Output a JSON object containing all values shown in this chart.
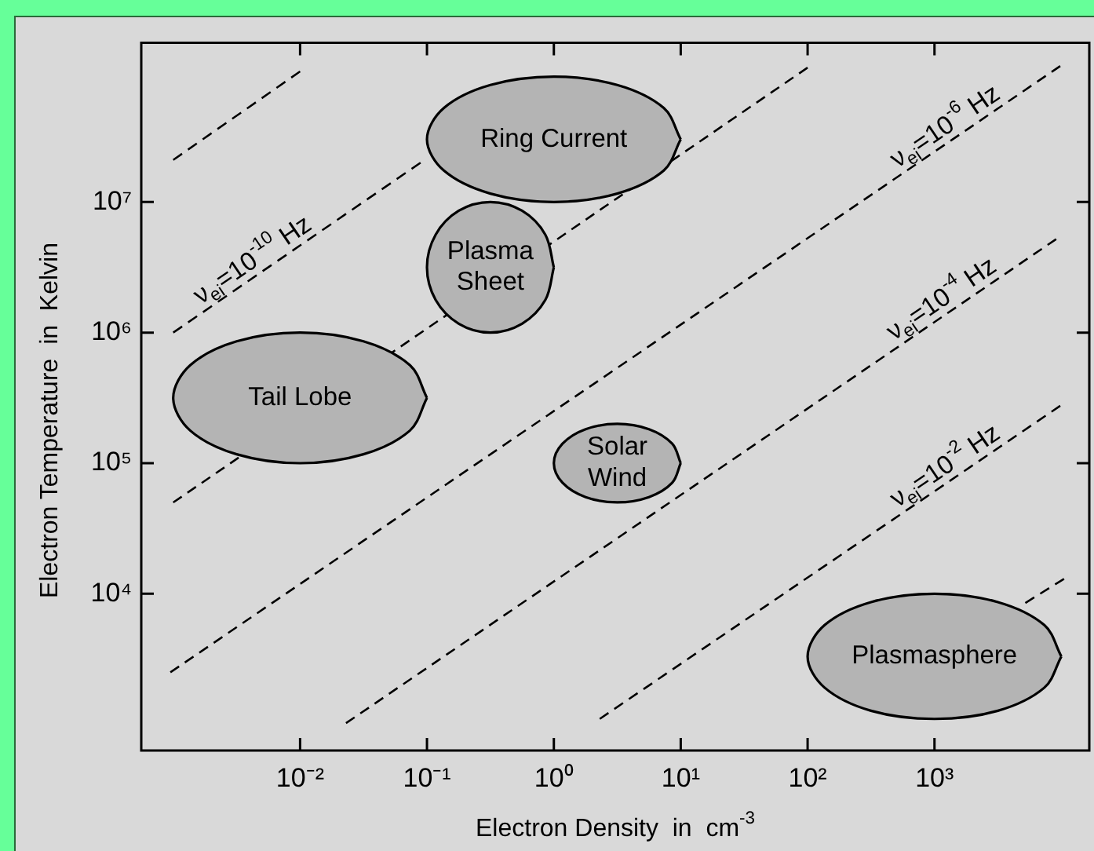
{
  "chart_data": {
    "type": "line",
    "xlabel": "Electron Density  in  cm$^{-3}$",
    "ylabel": "Electron Temperature  in  Kelvin",
    "log": "xy",
    "xlim": [
      0.00056,
      16600
    ],
    "ylim": [
      630,
      166000000
    ],
    "xticks": [
      {
        "value": 0.01,
        "label": "10⁻²"
      },
      {
        "value": 0.1,
        "label": "10⁻¹"
      },
      {
        "value": 1,
        "label": "10⁰"
      },
      {
        "value": 10,
        "label": "10¹"
      },
      {
        "value": 100,
        "label": "10²"
      },
      {
        "value": 1000,
        "label": "10³"
      }
    ],
    "yticks": [
      {
        "value": 10000,
        "label": "10⁴"
      },
      {
        "value": 100000,
        "label": "10⁵"
      },
      {
        "value": 1000000,
        "label": "10⁶"
      },
      {
        "value": 10000000,
        "label": "10⁷"
      }
    ],
    "grid": false,
    "legend": false,
    "line_style": "dashed",
    "marker": "none",
    "series": [
      {
        "color": "#000000",
        "x": [
          0.001,
          0.01
        ],
        "values": [
          21000000,
          100000000
        ]
      },
      {
        "color": "#000000",
        "x": [
          0.001,
          0.089
        ],
        "values": [
          1000000,
          20000000
        ]
      },
      {
        "color": "#000000",
        "x": [
          0.001,
          100
        ],
        "values": [
          50000,
          107000000
        ]
      },
      {
        "color": "#000000",
        "x": [
          0.00095,
          9800
        ],
        "values": [
          2500,
          110000000
        ]
      },
      {
        "color": "#000000",
        "x": [
          0.023,
          9100
        ],
        "values": [
          1020,
          5200000
        ]
      },
      {
        "color": "#000000",
        "x": [
          2.3,
          9800
        ],
        "values": [
          1100,
          275000
        ]
      },
      {
        "color": "#000000",
        "x": [
          5200,
          10500
        ],
        "values": [
          8500,
          13000
        ]
      },
      {
        "type": "area",
        "name": "Tail Lobe",
        "color": "#b4b4b4",
        "x": [
          0.1,
          0.0735,
          0.0316,
          0.01,
          0.00316,
          0.00136,
          0.001,
          0.00136,
          0.00316,
          0.01,
          0.0316,
          0.0735,
          0.1
        ],
        "values": [
          316000,
          562000,
          857000,
          1000000,
          857000,
          562000,
          316000,
          178000,
          117000,
          100000,
          117000,
          178000,
          316000
        ]
      },
      {
        "type": "area",
        "name": "Ring Current",
        "color": "#b4b4b4",
        "x": [
          10,
          7.35,
          3.16,
          1,
          0.316,
          0.136,
          0.1,
          0.136,
          0.316,
          1,
          3.16,
          7.35,
          10
        ],
        "values": [
          30200000,
          52500000,
          78700000,
          91200000,
          78700000,
          52500000,
          30200000,
          17400000,
          11600000,
          10000000,
          11600000,
          17400000,
          30200000
        ]
      },
      {
        "type": "area",
        "name": "Plasma Sheet",
        "color": "#b4b4b4",
        "x": [
          1,
          0.857,
          0.562,
          0.316,
          0.178,
          0.117,
          0.1,
          0.117,
          0.178,
          0.316,
          0.562,
          0.857,
          1
        ],
        "values": [
          3160000,
          5620000,
          8570000,
          10000000,
          8570000,
          5620000,
          3160000,
          1780000,
          1170000,
          1000000,
          1170000,
          1780000,
          3160000
        ]
      },
      {
        "type": "area",
        "name": "Solar Wind",
        "color": "#b4b4b4",
        "x": [
          10,
          8.57,
          5.62,
          3.16,
          1.78,
          1.17,
          1,
          1.17,
          1.78,
          3.16,
          5.62,
          8.57,
          10
        ],
        "values": [
          100000,
          141000,
          182000,
          200000,
          182000,
          141000,
          100000,
          70800,
          55000,
          50100,
          55000,
          70800,
          100000
        ]
      },
      {
        "type": "area",
        "name": "Plasmasphere",
        "color": "#b4b4b4",
        "x": [
          10000,
          7350,
          3160,
          1000,
          316,
          136,
          100,
          136,
          316,
          1000,
          3160,
          7350,
          10000
        ],
        "values": [
          3310,
          5750,
          8630,
          10000,
          8630,
          5750,
          3310,
          1910,
          1270,
          1100,
          1270,
          1910,
          3310
        ]
      }
    ],
    "annotations": [
      {
        "text": "ν$_{ei}$=10$^{-10}$ Hz",
        "x": 0.0049,
        "y": 2900000
      },
      {
        "text": "ν$_{ei}$=10$^{-6}$ Hz",
        "x": 1410,
        "y": 30500000
      },
      {
        "text": "ν$_{ei}$=10$^{-4}$ Hz",
        "x": 1320,
        "y": 1460000
      },
      {
        "text": "ν$_{ei}$=10$^{-2}$ Hz",
        "x": 1410,
        "y": 76600
      }
    ]
  }
}
